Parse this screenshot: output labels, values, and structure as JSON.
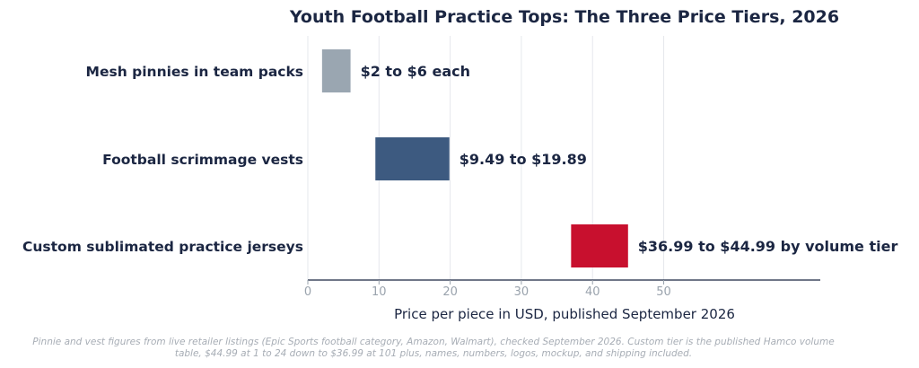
{
  "chart_data": {
    "type": "bar",
    "orientation": "horizontal",
    "style": "floating-range",
    "title": "Youth Football Practice Tops: The Three Price Tiers, 2026",
    "xlabel": "Price per piece in USD, published September 2026",
    "ylabel": "",
    "xlim": [
      0,
      72
    ],
    "xticks": [
      0,
      10,
      20,
      30,
      40,
      50
    ],
    "grid": "vertical",
    "legend": "none",
    "categories": [
      "Mesh pinnies in team packs",
      "Football scrimmage vests",
      "Custom sublimated practice jerseys"
    ],
    "ranges": [
      {
        "low": 2,
        "high": 6,
        "label": "$2 to $6 each",
        "color": "#9aa6b1"
      },
      {
        "low": 9.49,
        "high": 19.89,
        "label": "$9.49 to $19.89",
        "color": "#3d5a80"
      },
      {
        "low": 36.99,
        "high": 44.99,
        "label": "$36.99 to $44.99 by volume tier",
        "color": "#c8102e"
      }
    ]
  },
  "footnote": {
    "line1": "Pinnie and vest figures from live retailer listings (Epic Sports football category, Amazon, Walmart), checked September 2026. Custom tier is the published Hamco volume",
    "line2": "table, $44.99 at 1 to 24 down to $36.99 at 101 plus, names, numbers, logos, mockup, and shipping included."
  }
}
